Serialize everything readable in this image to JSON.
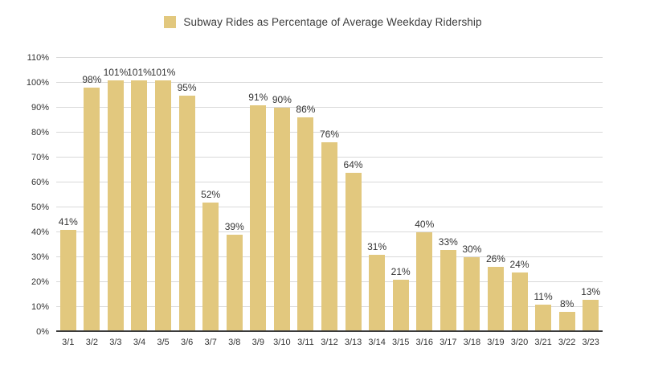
{
  "chart_data": {
    "type": "bar",
    "title": "Subway Rides as Percentage of Average Weekday Ridership",
    "categories": [
      "3/1",
      "3/2",
      "3/3",
      "3/4",
      "3/5",
      "3/6",
      "3/7",
      "3/8",
      "3/9",
      "3/10",
      "3/11",
      "3/12",
      "3/13",
      "3/14",
      "3/15",
      "3/16",
      "3/17",
      "3/18",
      "3/19",
      "3/20",
      "3/21",
      "3/22",
      "3/23"
    ],
    "values": [
      41,
      98,
      101,
      101,
      101,
      95,
      52,
      39,
      91,
      90,
      86,
      76,
      64,
      31,
      21,
      40,
      33,
      30,
      26,
      24,
      11,
      8,
      13
    ],
    "bar_label_suffix": "%",
    "xlabel": "",
    "ylabel": "",
    "ylim": [
      0,
      110
    ],
    "y_tick_step": 10,
    "y_tick_suffix": "%",
    "grid": true,
    "legend_position": "top",
    "colors": {
      "bar": "#e2c87e",
      "gridline": "#d9d9d9",
      "axis_line": "#3c3c3c",
      "text": "#333333"
    }
  }
}
